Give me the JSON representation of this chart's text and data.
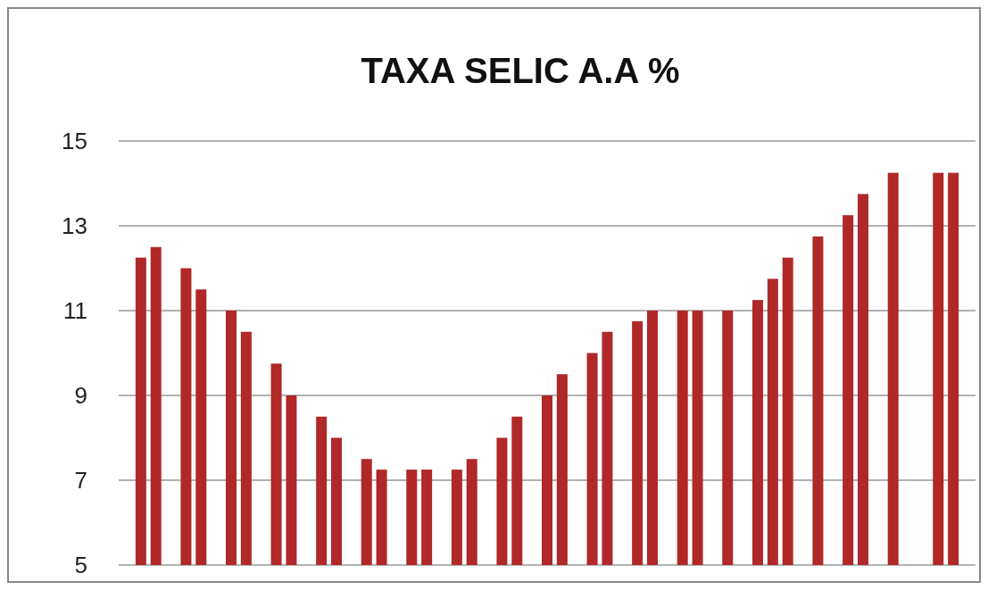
{
  "chart_data": {
    "type": "bar",
    "title": "TAXA SELIC A.A %",
    "categories": [
      null,
      null,
      null,
      null,
      null,
      null,
      null,
      null,
      null,
      null,
      null,
      null,
      null,
      null,
      null,
      null,
      null,
      null,
      null,
      null,
      null,
      null,
      null,
      null,
      null,
      null,
      null,
      null,
      null,
      null,
      null,
      null,
      null,
      null,
      null,
      null,
      null,
      null,
      null,
      null,
      null,
      null,
      null,
      null,
      null,
      null,
      null,
      null,
      null,
      null,
      null,
      null,
      null,
      null,
      null,
      null,
      null
    ],
    "values": [
      null,
      12.25,
      12.5,
      null,
      12.0,
      11.5,
      null,
      11.0,
      10.5,
      null,
      9.75,
      9.0,
      null,
      8.5,
      8.0,
      null,
      7.5,
      7.25,
      null,
      7.25,
      7.25,
      null,
      7.25,
      7.5,
      null,
      8.0,
      8.5,
      null,
      9.0,
      9.5,
      null,
      10.0,
      10.5,
      null,
      10.75,
      11.0,
      null,
      11.0,
      11.0,
      null,
      11.0,
      null,
      11.25,
      11.75,
      12.25,
      null,
      12.75,
      null,
      13.25,
      13.75,
      null,
      14.25,
      null,
      null,
      14.25,
      14.25,
      null
    ],
    "color": "#b02828",
    "ylim": [
      5,
      15
    ],
    "yticks": [
      5,
      7,
      9,
      11,
      13,
      15
    ],
    "grid": "y",
    "tick_labels": "y"
  }
}
